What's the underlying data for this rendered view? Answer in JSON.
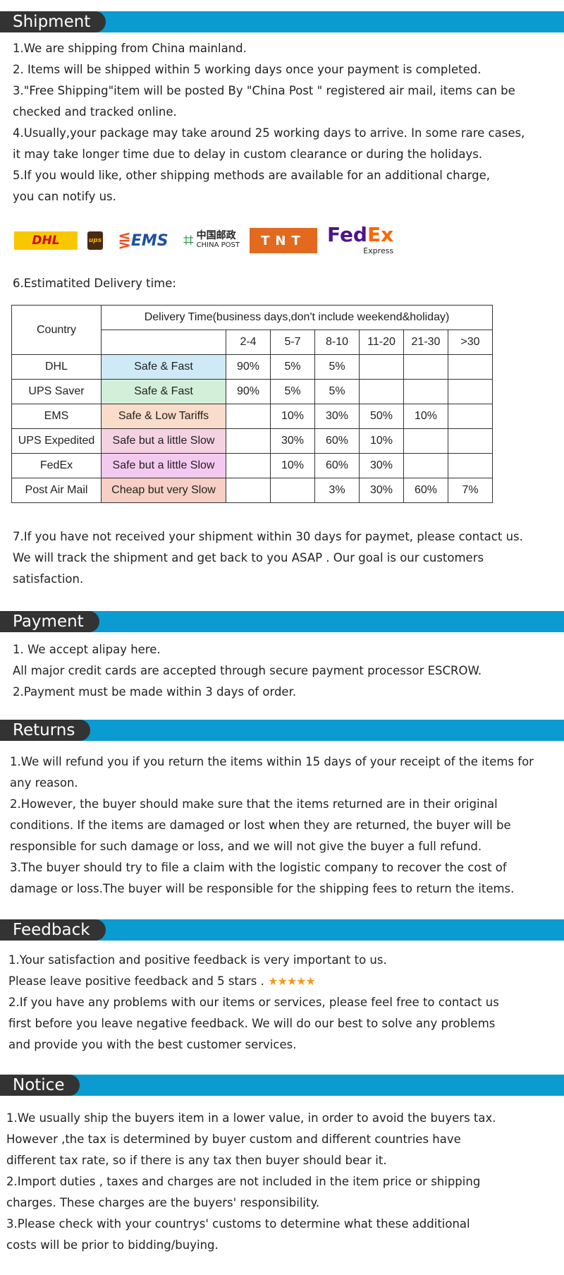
{
  "shipment": {
    "title": "Shipment",
    "lines": [
      "1.We are shipping from China mainland.",
      "2. Items will be shipped within 5 working days once your payment is completed.",
      "3.\"Free Shipping\"item will be posted By \"China Post \" registered air mail, items can be",
      "checked and tracked online.",
      "4.Usually,your package may take around 25 working days to arrive. In some rare cases,",
      " it may take longer time due to delay in custom clearance or during the holidays.",
      "5.If you would like, other shipping methods are available for an additional charge,",
      "you can notify us."
    ],
    "logos": {
      "dhl": "DHL",
      "ups": "ups",
      "ems": "EMS",
      "chinapost_cn": "中国邮政",
      "chinapost_en": "CHINA POST",
      "tnt": "TNT",
      "fedex": "FedEx",
      "fedex_sub": "Express"
    },
    "delivery_label": "6.Estimatited Delivery time:",
    "after_lines": [
      "7.If you have not received your shipment within 30 days for paymet, please contact us.",
      "We will track the shipment and get back to you ASAP . Our goal is our customers",
      "satisfaction."
    ]
  },
  "table": {
    "country_header": "Country",
    "time_header": "Delivery Time(business days,don't include weekend&holiday)",
    "ranges": [
      "2-4",
      "5-7",
      "8-10",
      "11-20",
      "21-30",
      ">30"
    ],
    "rows": [
      {
        "country": "DHL",
        "label": "Safe & Fast",
        "color": "#cfeaf7",
        "values": [
          "90%",
          "5%",
          "5%",
          "",
          "",
          ""
        ]
      },
      {
        "country": "UPS Saver",
        "label": "Safe & Fast",
        "color": "#d3efd9",
        "values": [
          "90%",
          "5%",
          "5%",
          "",
          "",
          ""
        ]
      },
      {
        "country": "EMS",
        "label": "Safe & Low Tariffs",
        "color": "#f9dcc9",
        "values": [
          "",
          "10%",
          "30%",
          "50%",
          "10%",
          ""
        ]
      },
      {
        "country": "UPS Expedited",
        "label": "Safe but a little Slow",
        "color": "#f5d2e2",
        "values": [
          "",
          "30%",
          "60%",
          "10%",
          "",
          ""
        ]
      },
      {
        "country": "FedEx",
        "label": "Safe but a little Slow",
        "color": "#f4c9f1",
        "values": [
          "",
          "10%",
          "60%",
          "30%",
          "",
          ""
        ]
      },
      {
        "country": "Post Air Mail",
        "label": "Cheap but very Slow",
        "color": "#f7cfc4",
        "values": [
          "",
          "",
          "3%",
          "30%",
          "60%",
          "7%"
        ]
      }
    ]
  },
  "payment": {
    "title": "Payment",
    "lines": [
      "1. We accept alipay here.",
      "All major credit cards are accepted through secure payment processor ESCROW.",
      "2.Payment must be made within 3 days of order."
    ]
  },
  "returns": {
    "title": "Returns",
    "lines": [
      "1.We will refund you if you return the items within 15 days of your receipt of the items for",
      "any reason.",
      "2.However, the buyer should make sure that the items returned are in their original",
      "conditions. If the items are damaged or lost when they are returned, the buyer will be",
      "responsible for such damage or loss, and we will not give the buyer a full refund.",
      "3.The buyer should try to file a claim with the logistic company to recover the cost of",
      "damage or loss.The buyer will be responsible for the shipping fees to return the items."
    ]
  },
  "feedback": {
    "title": "Feedback",
    "lines": [
      "1.Your satisfaction and positive feedback is very important to us.",
      "Please leave positive feedback and 5 stars .",
      "2.If you have any problems with our items or services, please feel free to contact us",
      "first before you leave negative feedback.  We will do our best to solve any problems",
      "and provide you with the best customer services."
    ],
    "stars": "★★★★★"
  },
  "notice": {
    "title": "Notice",
    "lines": [
      "1.We usually ship the buyers item in a lower value, in order to avoid the buyers tax.",
      "However ,the tax is determined by buyer custom and different countries have",
      "different tax rate, so if there is any tax then buyer should bear it.",
      "2.Import duties , taxes and charges are not included in the item price or shipping",
      "charges. These charges are the buyers' responsibility.",
      "3.Please check with your countrys' customs to determine what these additional",
      "costs will be prior to bidding/buying."
    ]
  }
}
